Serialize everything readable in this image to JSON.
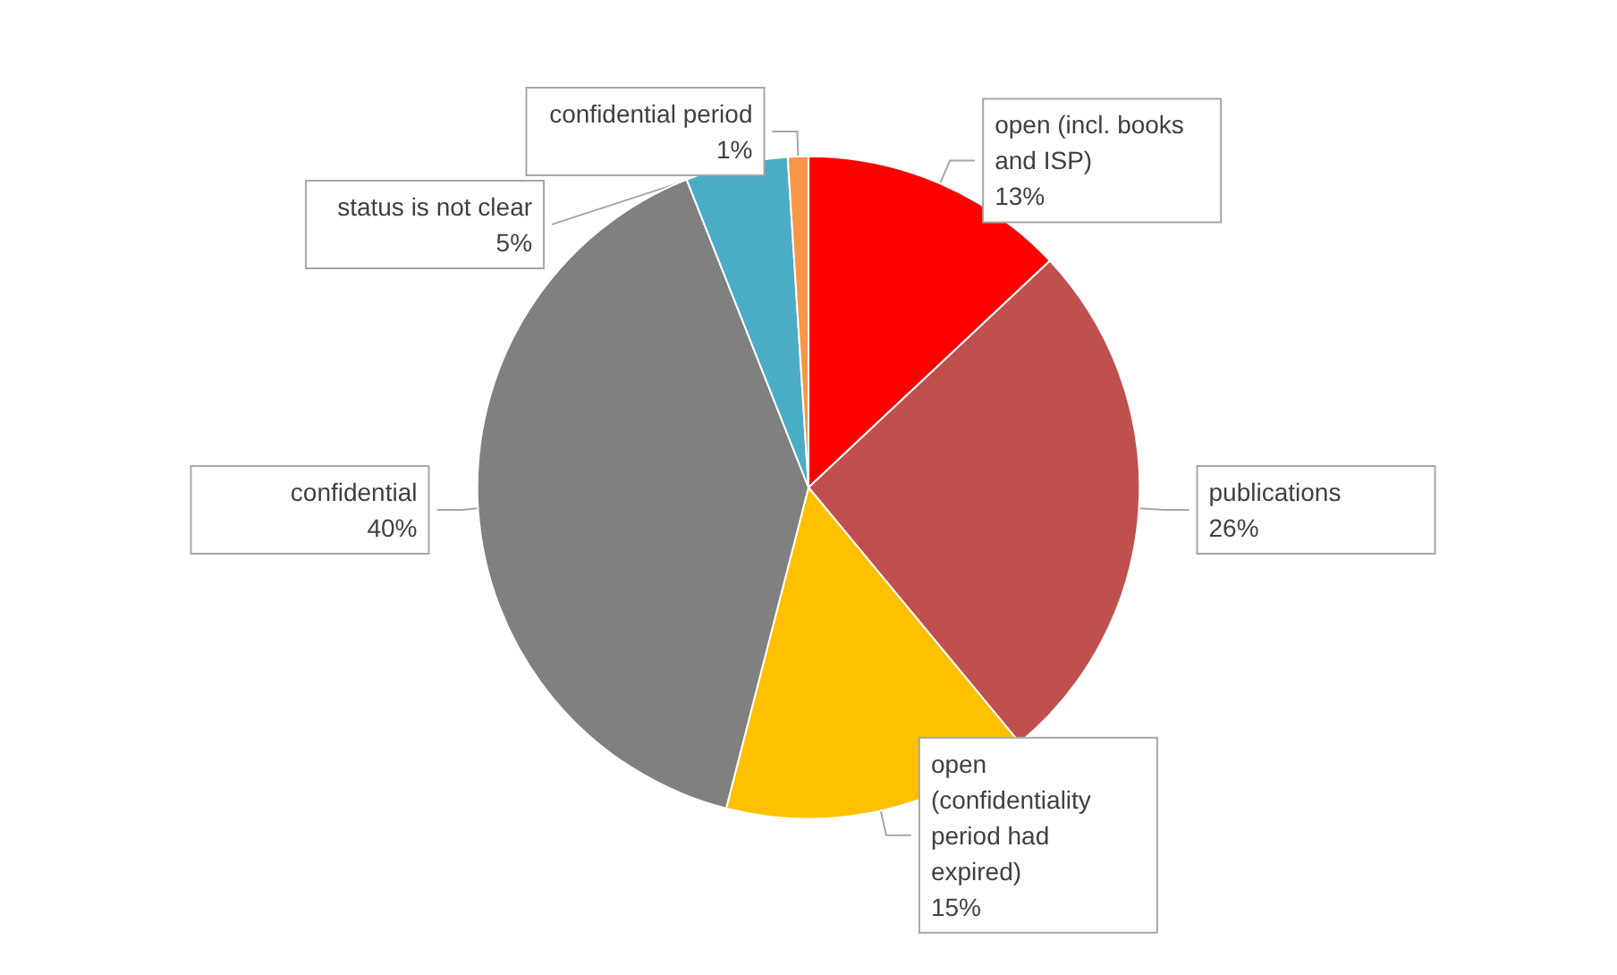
{
  "chart_data": {
    "type": "pie",
    "categories": [
      "open (incl. books and ISP)",
      "publications",
      "open (confidentiality period had expired)",
      "confidential",
      "status is not clear",
      "confidential period"
    ],
    "values": [
      13,
      26,
      15,
      40,
      5,
      1
    ],
    "colors": [
      "#ff0000",
      "#c0504d",
      "#ffc000",
      "#808080",
      "#4bacc6",
      "#f79646"
    ],
    "value_labels": [
      "13%",
      "26%",
      "15%",
      "40%",
      "5%",
      "1%"
    ]
  }
}
